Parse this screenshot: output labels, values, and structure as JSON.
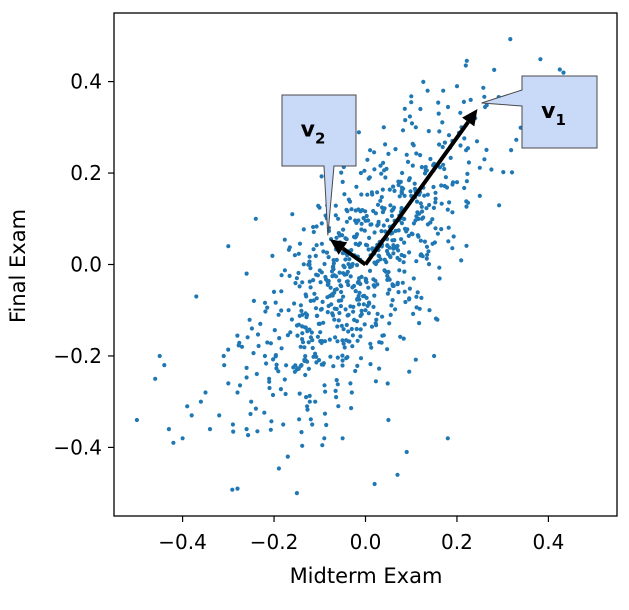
{
  "chart_data": {
    "type": "scatter",
    "xlabel": "Midterm Exam",
    "ylabel": "Final Exam",
    "xlim": [
      -0.55,
      0.55
    ],
    "ylim": [
      -0.55,
      0.55
    ],
    "xticks": [
      -0.4,
      -0.2,
      0.0,
      0.2,
      0.4
    ],
    "yticks": [
      -0.4,
      -0.2,
      0.0,
      0.2,
      0.4
    ],
    "xtick_labels": [
      "−0.4",
      "−0.2",
      "0.0",
      "0.2",
      "0.4"
    ],
    "ytick_labels": [
      "−0.4",
      "−0.2",
      "0.0",
      "0.2",
      "0.4"
    ],
    "grid": false,
    "point_color": "#1f77b4",
    "approx_point_count": 800,
    "points": [
      [
        -0.5,
        -0.34
      ],
      [
        -0.45,
        -0.2
      ],
      [
        -0.46,
        -0.25
      ],
      [
        -0.44,
        -0.22
      ],
      [
        -0.43,
        -0.36
      ],
      [
        -0.42,
        -0.39
      ],
      [
        -0.39,
        -0.31
      ],
      [
        -0.4,
        -0.38
      ],
      [
        -0.38,
        -0.33
      ],
      [
        -0.37,
        -0.07
      ],
      [
        -0.36,
        -0.3
      ],
      [
        -0.35,
        -0.28
      ],
      [
        -0.34,
        -0.36
      ],
      [
        -0.32,
        -0.33
      ],
      [
        -0.31,
        -0.2
      ],
      [
        -0.3,
        -0.26
      ],
      [
        -0.29,
        -0.35
      ],
      [
        -0.28,
        -0.49
      ],
      [
        -0.28,
        -0.28
      ],
      [
        -0.27,
        -0.18
      ],
      [
        -0.26,
        -0.36
      ],
      [
        -0.25,
        -0.3
      ],
      [
        -0.3,
        0.04
      ],
      [
        -0.26,
        -0.02
      ],
      [
        -0.24,
        0.1
      ],
      [
        -0.23,
        -0.13
      ],
      [
        -0.22,
        -0.2
      ],
      [
        -0.21,
        -0.27
      ],
      [
        -0.2,
        -0.06
      ],
      [
        -0.19,
        -0.11
      ],
      [
        -0.18,
        -0.35
      ],
      [
        -0.17,
        -0.42
      ],
      [
        -0.16,
        0.11
      ],
      [
        -0.15,
        -0.03
      ],
      [
        -0.14,
        -0.22
      ],
      [
        -0.13,
        -0.29
      ],
      [
        -0.12,
        -0.05
      ],
      [
        -0.11,
        -0.3
      ],
      [
        -0.1,
        -0.13
      ],
      [
        -0.09,
        -0.38
      ],
      [
        -0.08,
        0.08
      ],
      [
        -0.07,
        -0.01
      ],
      [
        -0.06,
        0.1
      ],
      [
        -0.05,
        -0.21
      ],
      [
        -0.04,
        0.02
      ],
      [
        -0.03,
        -0.28
      ],
      [
        -0.02,
        0.17
      ],
      [
        -0.01,
        0.2
      ],
      [
        0.0,
        -0.1
      ],
      [
        0.01,
        0.25
      ],
      [
        0.02,
        0.07
      ],
      [
        0.03,
        -0.17
      ],
      [
        0.04,
        0.3
      ],
      [
        0.05,
        -0.03
      ],
      [
        0.06,
        0.12
      ],
      [
        0.07,
        -0.46
      ],
      [
        0.08,
        0.2
      ],
      [
        0.09,
        0.24
      ],
      [
        0.1,
        0.15
      ],
      [
        0.11,
        0.3
      ],
      [
        0.12,
        0.34
      ],
      [
        0.13,
        0.05
      ],
      [
        0.14,
        -0.1
      ],
      [
        0.15,
        0.22
      ],
      [
        0.16,
        0.33
      ],
      [
        0.17,
        0.38
      ],
      [
        0.18,
        0.12
      ],
      [
        0.19,
        0.27
      ],
      [
        0.2,
        0.18
      ],
      [
        0.21,
        0.3
      ],
      [
        0.22,
        0.25
      ],
      [
        0.23,
        0.36
      ],
      [
        0.24,
        0.32
      ],
      [
        0.25,
        0.15
      ],
      [
        0.26,
        0.23
      ],
      [
        0.2,
        0.39
      ],
      [
        0.15,
        -0.2
      ],
      [
        0.18,
        -0.38
      ],
      [
        0.09,
        -0.41
      ],
      [
        -0.15,
        -0.5
      ],
      [
        -0.05,
        -0.38
      ],
      [
        0.02,
        -0.48
      ],
      [
        0.05,
        -0.34
      ]
    ],
    "cloud": {
      "mean": [
        0.0,
        0.0
      ],
      "principal_sd": 0.19,
      "secondary_sd": 0.075,
      "angle_deg": 55,
      "seed": 7
    },
    "vectors": [
      {
        "name": "v1",
        "from": [
          0.0,
          0.0
        ],
        "to": [
          0.245,
          0.34
        ]
      },
      {
        "name": "v2",
        "from": [
          0.0,
          0.0
        ],
        "to": [
          -0.078,
          0.055
        ]
      }
    ],
    "callouts": [
      {
        "letter": "v",
        "subscript": "1",
        "target": 0
      },
      {
        "letter": "v",
        "subscript": "2",
        "target": 1
      }
    ],
    "callout_fill": "#c9daf8",
    "vector_color": "#000000"
  }
}
